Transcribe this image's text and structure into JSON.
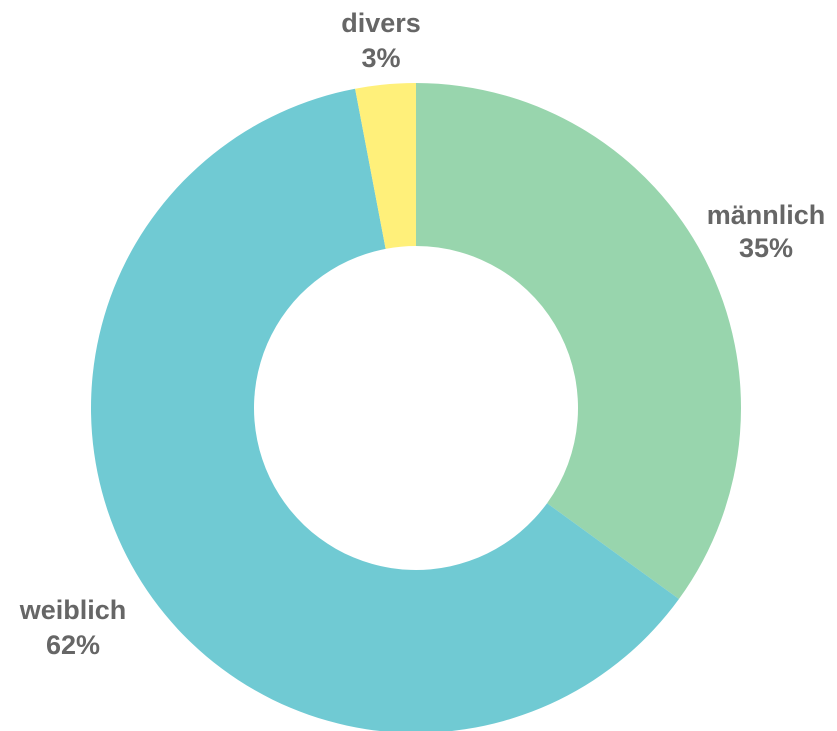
{
  "chart_data": {
    "type": "pie",
    "donut": true,
    "title": "",
    "slices": [
      {
        "label": "männlich",
        "value": 35,
        "value_label": "35%",
        "color": "#98d5ad"
      },
      {
        "label": "weiblich",
        "value": 62,
        "value_label": "62%",
        "color": "#70cad3"
      },
      {
        "label": "divers",
        "value": 3,
        "value_label": "3%",
        "color": "#fff07a"
      }
    ]
  }
}
